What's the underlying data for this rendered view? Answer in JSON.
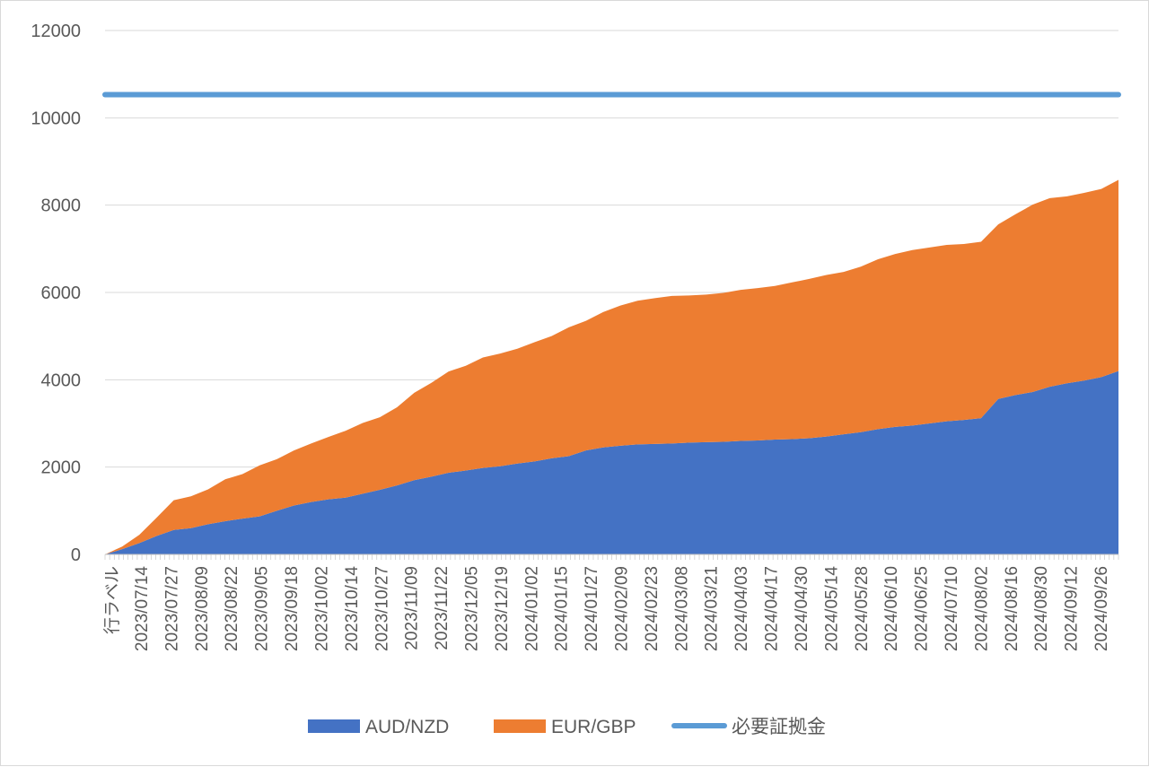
{
  "chart_data": {
    "type": "area",
    "stacked": true,
    "first_category_label": "行ラベル",
    "x_tick_labels": [
      "2023/07/14",
      "2023/07/27",
      "2023/08/09",
      "2023/08/22",
      "2023/09/05",
      "2023/09/18",
      "2023/10/02",
      "2023/10/14",
      "2023/10/27",
      "2023/11/09",
      "2023/11/22",
      "2023/12/05",
      "2023/12/19",
      "2024/01/02",
      "2024/01/15",
      "2024/01/27",
      "2024/02/09",
      "2024/02/23",
      "2024/03/08",
      "2024/03/21",
      "2024/04/03",
      "2024/04/17",
      "2024/04/30",
      "2024/05/14",
      "2024/05/28",
      "2024/06/10",
      "2024/06/25",
      "2024/07/10",
      "2024/08/02",
      "2024/08/16",
      "2024/08/30",
      "2024/09/12",
      "2024/09/26"
    ],
    "ylim": [
      0,
      12000
    ],
    "y_ticks": [
      0,
      2000,
      4000,
      6000,
      8000,
      10000,
      12000
    ],
    "grid": true,
    "legend_position": "bottom",
    "series": [
      {
        "name": "AUD/NZD",
        "type": "area",
        "color": "#4472C4",
        "values": [
          0,
          120,
          260,
          420,
          560,
          600,
          690,
          760,
          820,
          870,
          1000,
          1120,
          1200,
          1260,
          1300,
          1390,
          1480,
          1580,
          1700,
          1780,
          1870,
          1920,
          1980,
          2020,
          2080,
          2130,
          2200,
          2250,
          2380,
          2450,
          2490,
          2520,
          2530,
          2540,
          2560,
          2570,
          2580,
          2600,
          2610,
          2630,
          2640,
          2660,
          2700,
          2750,
          2800,
          2870,
          2920,
          2950,
          3000,
          3050,
          3080,
          3120,
          3560,
          3650,
          3720,
          3840,
          3920,
          3980,
          4060,
          4200
        ]
      },
      {
        "name": "EUR/GBP",
        "type": "area",
        "color": "#ED7D31",
        "values": [
          0,
          60,
          190,
          420,
          680,
          730,
          800,
          960,
          1020,
          1170,
          1180,
          1260,
          1340,
          1430,
          1530,
          1620,
          1660,
          1790,
          2000,
          2150,
          2320,
          2400,
          2530,
          2580,
          2630,
          2730,
          2800,
          2950,
          2970,
          3100,
          3210,
          3290,
          3340,
          3380,
          3370,
          3380,
          3410,
          3460,
          3490,
          3520,
          3590,
          3650,
          3700,
          3720,
          3790,
          3890,
          3960,
          4020,
          4030,
          4040,
          4030,
          4040,
          4000,
          4140,
          4290,
          4320,
          4280,
          4300,
          4310,
          4380
        ]
      },
      {
        "name": "必要証拠金",
        "type": "line",
        "color": "#5B9BD5",
        "value": 10530
      }
    ]
  }
}
